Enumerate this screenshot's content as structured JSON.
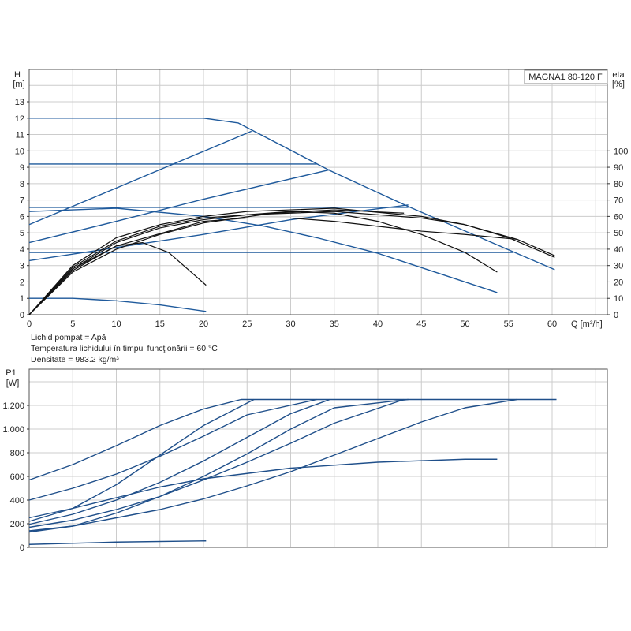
{
  "chart_data": [
    {
      "type": "line",
      "title": "MAGNA1 80-120 F",
      "xlabel": "Q [m³/h]",
      "ylabel_left": "H\n[m]",
      "ylabel_right": "eta\n[%]",
      "xlim": [
        0,
        66.5
      ],
      "ylim_left": [
        0,
        14.5
      ],
      "ylim_right": [
        0,
        145
      ],
      "xticks": [
        0,
        5,
        10,
        15,
        20,
        25,
        30,
        35,
        40,
        45,
        50,
        55,
        60
      ],
      "yticks_left": [
        0,
        1,
        2,
        3,
        4,
        5,
        6,
        7,
        8,
        9,
        10,
        11,
        12,
        13
      ],
      "yticks_right": [
        0,
        10,
        20,
        30,
        40,
        50,
        60,
        70,
        80,
        90,
        100
      ],
      "grid": true,
      "colors": {
        "head": "#1f5a9c",
        "efficiency": "#111111",
        "grid": "#cccccc"
      },
      "head_series": [
        {
          "points": [
            [
              0,
              12
            ],
            [
              20,
              12
            ],
            [
              24,
              11.7
            ],
            [
              34.5,
              8.8
            ],
            [
              43.5,
              6.6
            ],
            [
              60.3,
              2.75
            ]
          ]
        },
        {
          "points": [
            [
              0,
              9.2
            ],
            [
              33,
              9.2
            ]
          ]
        },
        {
          "points": [
            [
              0,
              5.5
            ],
            [
              25.5,
              11.2
            ]
          ]
        },
        {
          "points": [
            [
              0,
              4.4
            ],
            [
              10,
              5.7
            ],
            [
              20,
              7.05
            ],
            [
              34.5,
              8.85
            ]
          ]
        },
        {
          "points": [
            [
              0,
              6.55
            ],
            [
              43.5,
              6.55
            ]
          ]
        },
        {
          "points": [
            [
              0,
              6.3
            ],
            [
              10,
              6.5
            ],
            [
              20,
              6.0
            ],
            [
              27,
              5.4
            ],
            [
              33,
              4.7
            ],
            [
              40,
              3.75
            ],
            [
              53.7,
              1.35
            ]
          ]
        },
        {
          "points": [
            [
              0,
              3.3
            ],
            [
              10,
              4.1
            ],
            [
              20,
              4.9
            ],
            [
              30,
              5.8
            ],
            [
              43.5,
              6.7
            ]
          ]
        },
        {
          "points": [
            [
              0,
              3.8
            ],
            [
              55.5,
              3.8
            ]
          ]
        },
        {
          "points": [
            [
              0,
              1
            ],
            [
              5,
              1
            ],
            [
              10,
              0.85
            ],
            [
              15,
              0.6
            ],
            [
              20.3,
              0.2
            ]
          ]
        }
      ],
      "efficiency_series": [
        {
          "points": [
            [
              0,
              0
            ],
            [
              5,
              28
            ],
            [
              10,
              42
            ],
            [
              13,
              44
            ],
            [
              16,
              38
            ],
            [
              20.3,
              18
            ]
          ]
        },
        {
          "points": [
            [
              0,
              0
            ],
            [
              5,
              30
            ],
            [
              10,
              47
            ],
            [
              15,
              55
            ],
            [
              20,
              60
            ],
            [
              25,
              63
            ],
            [
              35,
              65
            ],
            [
              45,
              60
            ],
            [
              50,
              55
            ],
            [
              55,
              47
            ],
            [
              60.3,
              35
            ]
          ]
        },
        {
          "points": [
            [
              0,
              0
            ],
            [
              5,
              28
            ],
            [
              10,
              44
            ],
            [
              15,
              53
            ],
            [
              20,
              58
            ],
            [
              25,
              61
            ],
            [
              35,
              63
            ],
            [
              45,
              59
            ],
            [
              50,
              55
            ],
            [
              56,
              46
            ],
            [
              60.3,
              36
            ]
          ]
        },
        {
          "points": [
            [
              0,
              0
            ],
            [
              5,
              27
            ],
            [
              10,
              42
            ],
            [
              20,
              57
            ],
            [
              25,
              59
            ],
            [
              30,
              59
            ],
            [
              35,
              57
            ],
            [
              40,
              54
            ],
            [
              45,
              51
            ],
            [
              50,
              49
            ],
            [
              56,
              46
            ]
          ]
        },
        {
          "points": [
            [
              0,
              0
            ],
            [
              5,
              29
            ],
            [
              10,
              45
            ],
            [
              15,
              54
            ],
            [
              20,
              59
            ],
            [
              30,
              63
            ],
            [
              35,
              62
            ],
            [
              40,
              57
            ],
            [
              45,
              49
            ],
            [
              50,
              38
            ],
            [
              53.7,
              26
            ]
          ]
        },
        {
          "points": [
            [
              0,
              0
            ],
            [
              5,
              26
            ],
            [
              10,
              40
            ],
            [
              15,
              49
            ],
            [
              20,
              56
            ],
            [
              28,
              62
            ],
            [
              35,
              64
            ],
            [
              43,
              62
            ]
          ]
        }
      ]
    },
    {
      "type": "line",
      "ylabel": "P1\n[W]",
      "xlim": [
        0,
        66.5
      ],
      "ylim": [
        0,
        1500
      ],
      "yticks": [
        0,
        200,
        400,
        600,
        800,
        1000,
        1200
      ],
      "ytick_labels": [
        "0",
        "200",
        "400",
        "600",
        "800",
        "1.000",
        "1.200"
      ],
      "grid": true,
      "colors": {
        "power": "#1f4f8a"
      },
      "series": [
        {
          "points": [
            [
              0,
              570
            ],
            [
              5,
              700
            ],
            [
              10,
              860
            ],
            [
              15,
              1030
            ],
            [
              20,
              1170
            ],
            [
              24.3,
              1250
            ],
            [
              60.5,
              1250
            ]
          ]
        },
        {
          "points": [
            [
              0,
              400
            ],
            [
              5,
              500
            ],
            [
              10,
              620
            ],
            [
              15,
              770
            ],
            [
              20,
              940
            ],
            [
              25,
              1120
            ],
            [
              33,
              1250
            ]
          ]
        },
        {
          "points": [
            [
              0,
              220
            ],
            [
              5,
              330
            ],
            [
              10,
              530
            ],
            [
              15,
              780
            ],
            [
              20,
              1030
            ],
            [
              25.8,
              1250
            ]
          ]
        },
        {
          "points": [
            [
              0,
              250
            ],
            [
              5,
              330
            ],
            [
              10,
              420
            ],
            [
              15,
              510
            ],
            [
              20,
              580
            ],
            [
              30,
              670
            ],
            [
              40,
              720
            ],
            [
              50,
              745
            ],
            [
              53.7,
              745
            ]
          ]
        },
        {
          "points": [
            [
              0,
              195
            ],
            [
              5,
              280
            ],
            [
              10,
              400
            ],
            [
              15,
              550
            ],
            [
              20,
              730
            ],
            [
              25,
              930
            ],
            [
              30,
              1130
            ],
            [
              34.5,
              1250
            ]
          ]
        },
        {
          "points": [
            [
              0,
              170
            ],
            [
              5,
              230
            ],
            [
              10,
              320
            ],
            [
              15,
              430
            ],
            [
              20,
              570
            ],
            [
              25,
              720
            ],
            [
              30,
              880
            ],
            [
              35,
              1050
            ],
            [
              43,
              1250
            ]
          ]
        },
        {
          "points": [
            [
              0,
              140
            ],
            [
              5,
              180
            ],
            [
              10,
              290
            ],
            [
              15,
              430
            ],
            [
              20,
              600
            ],
            [
              25,
              790
            ],
            [
              30,
              1000
            ],
            [
              35,
              1180
            ],
            [
              43.5,
              1250
            ]
          ]
        },
        {
          "points": [
            [
              0,
              130
            ],
            [
              5,
              180
            ],
            [
              10,
              250
            ],
            [
              15,
              320
            ],
            [
              20,
              410
            ],
            [
              25,
              520
            ],
            [
              30,
              640
            ],
            [
              35,
              780
            ],
            [
              40,
              920
            ],
            [
              45,
              1060
            ],
            [
              50,
              1180
            ],
            [
              56,
              1250
            ]
          ]
        },
        {
          "points": [
            [
              0,
              25
            ],
            [
              10,
              45
            ],
            [
              20.3,
              55
            ]
          ]
        }
      ]
    }
  ],
  "info": {
    "liquid": "Lichid pompat = Apă",
    "temperature": "Temperatura lichidului în timpul funcţionării = 60 °C",
    "density": "Densitate = 983.2 kg/m³"
  }
}
